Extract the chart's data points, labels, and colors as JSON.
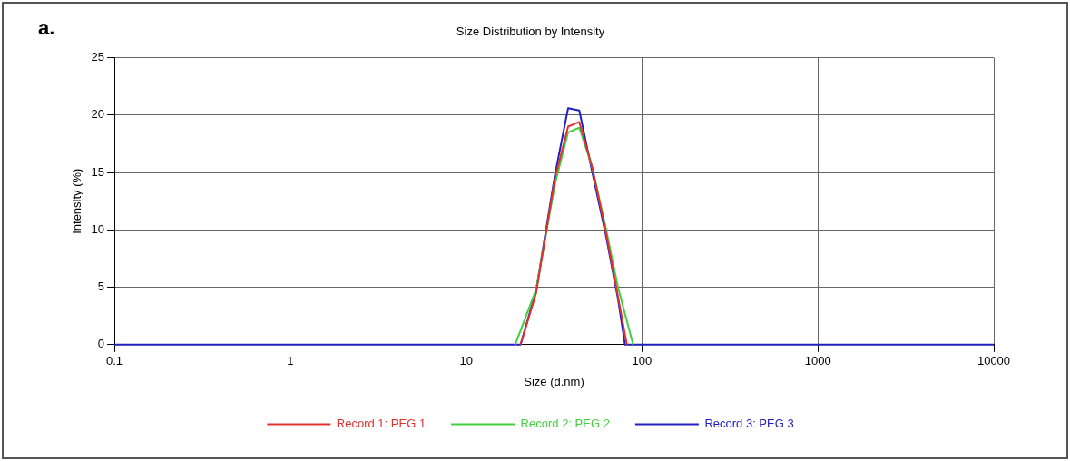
{
  "chart_data": {
    "type": "line",
    "title": "Size Distribution by Intensity",
    "xlabel": "Size (d.nm)",
    "ylabel": "Intensity (%)",
    "annotations": [
      "a."
    ],
    "log": "x",
    "xlim": [
      0.1,
      10000
    ],
    "xticks": [
      0.1,
      1,
      10,
      100,
      1000,
      10000
    ],
    "ylim": [
      0,
      25
    ],
    "yticks": [
      0,
      5,
      10,
      15,
      20,
      25
    ],
    "grid": true,
    "legend": "bottom",
    "marker": "none",
    "line_style": "solid",
    "series": [
      {
        "name": "Record 1: PEG 1",
        "color": "#e03030",
        "x": [
          20.4,
          25,
          32,
          38,
          44,
          52,
          62,
          73,
          82
        ],
        "values": [
          0,
          4.5,
          14.5,
          19,
          19.4,
          15.5,
          10,
          4.2,
          0
        ]
      },
      {
        "name": "Record 2: PEG 2",
        "color": "#40d040",
        "x": [
          19,
          25,
          32,
          38,
          44,
          52,
          62,
          73,
          89
        ],
        "values": [
          0,
          4.8,
          14,
          18.5,
          18.9,
          15.5,
          10.3,
          5,
          0
        ]
      },
      {
        "name": "Record 3: PEG 3",
        "color": "#2020c0",
        "x": [
          0.1,
          20.4,
          25,
          32,
          38,
          44,
          52,
          62,
          73,
          80,
          10000
        ],
        "values": [
          0,
          0,
          4.7,
          14.8,
          20.6,
          20.4,
          15.1,
          9.7,
          4,
          0,
          0
        ]
      }
    ]
  }
}
